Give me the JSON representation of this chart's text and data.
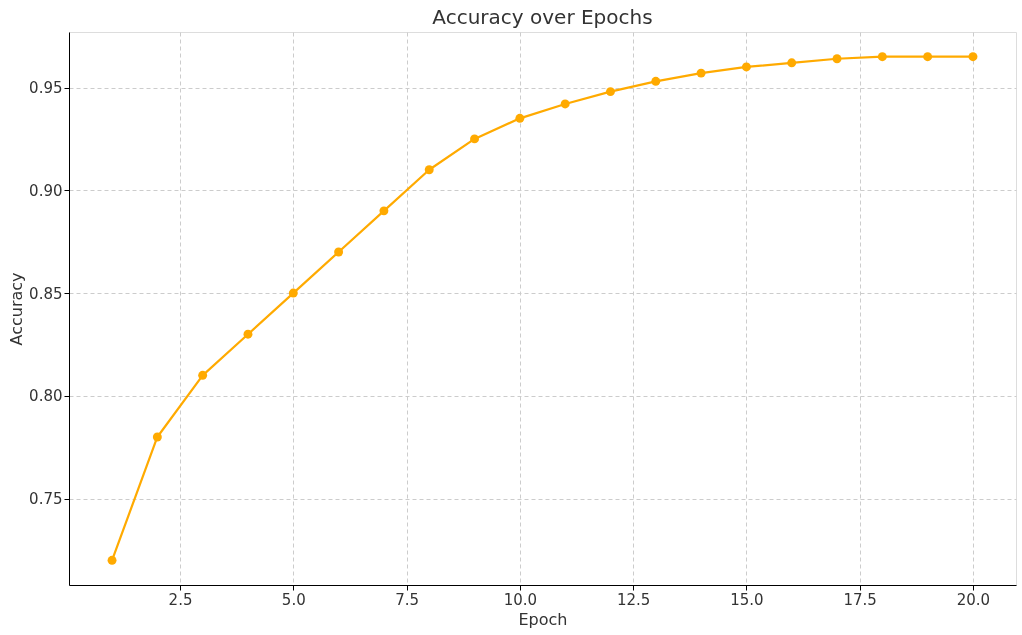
{
  "chart_data": {
    "type": "line",
    "title": "Accuracy over Epochs",
    "xlabel": "Epoch",
    "ylabel": "Accuracy",
    "x": [
      1,
      2,
      3,
      4,
      5,
      6,
      7,
      8,
      9,
      10,
      11,
      12,
      13,
      14,
      15,
      16,
      17,
      18,
      19,
      20
    ],
    "series": [
      {
        "color": "#ffaa00",
        "values": [
          0.72,
          0.78,
          0.81,
          0.83,
          0.85,
          0.87,
          0.89,
          0.91,
          0.925,
          0.935,
          0.942,
          0.948,
          0.953,
          0.957,
          0.96,
          0.962,
          0.964,
          0.965,
          0.965,
          0.965
        ]
      }
    ],
    "xlim": [
      0.05,
      20.95
    ],
    "xticks": [
      {
        "value": 2.5,
        "label": "2.5"
      },
      {
        "value": 5,
        "label": "5.0"
      },
      {
        "value": 7.5,
        "label": "7.5"
      },
      {
        "value": 10,
        "label": "10.0"
      },
      {
        "value": 12.5,
        "label": "12.5"
      },
      {
        "value": 15,
        "label": "15.0"
      },
      {
        "value": 17.5,
        "label": "17.5"
      },
      {
        "value": 20,
        "label": "20.0"
      }
    ],
    "ylim": [
      0.708,
      0.977
    ],
    "yticks": [
      {
        "value": 0.75,
        "label": "0.75"
      },
      {
        "value": 0.8,
        "label": "0.80"
      },
      {
        "value": 0.85,
        "label": "0.85"
      },
      {
        "value": 0.9,
        "label": "0.90"
      },
      {
        "value": 0.95,
        "label": "0.95"
      }
    ],
    "grid": true,
    "marker": "circle",
    "line_style": "solid"
  }
}
